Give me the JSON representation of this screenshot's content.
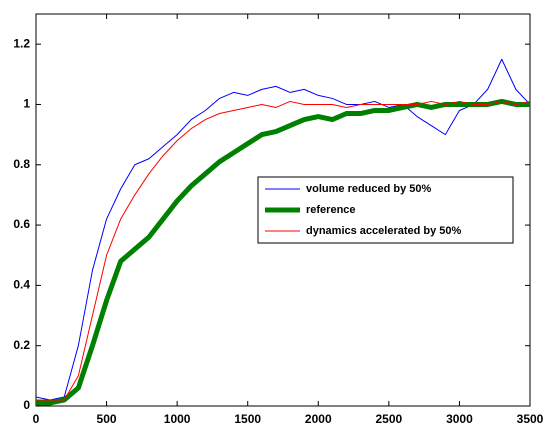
{
  "chart_data": {
    "type": "line",
    "x": [
      0,
      100,
      200,
      300,
      400,
      500,
      600,
      700,
      800,
      900,
      1000,
      1100,
      1200,
      1300,
      1400,
      1500,
      1600,
      1700,
      1800,
      1900,
      2000,
      2100,
      2200,
      2300,
      2400,
      2500,
      2600,
      2700,
      2800,
      2900,
      3000,
      3100,
      3200,
      3300,
      3400,
      3500
    ],
    "series": [
      {
        "name": "volume reduced by 50%",
        "color": "#0000ff",
        "values": [
          0.03,
          0.02,
          0.03,
          0.2,
          0.45,
          0.62,
          0.72,
          0.8,
          0.82,
          0.86,
          0.9,
          0.95,
          0.98,
          1.02,
          1.04,
          1.03,
          1.05,
          1.06,
          1.04,
          1.05,
          1.03,
          1.02,
          1.0,
          1.0,
          1.01,
          0.99,
          1.0,
          0.96,
          0.93,
          0.9,
          0.98,
          1.0,
          1.05,
          1.15,
          1.05,
          1.0
        ]
      },
      {
        "name": "reference",
        "color": "#008000",
        "values": [
          0.01,
          0.01,
          0.02,
          0.06,
          0.2,
          0.35,
          0.48,
          0.52,
          0.56,
          0.62,
          0.68,
          0.73,
          0.77,
          0.81,
          0.84,
          0.87,
          0.9,
          0.91,
          0.93,
          0.95,
          0.96,
          0.95,
          0.97,
          0.97,
          0.98,
          0.98,
          0.99,
          1.0,
          0.99,
          1.0,
          1.0,
          1.0,
          1.0,
          1.01,
          1.0,
          1.0
        ]
      },
      {
        "name": "dynamics accelerated by 50%",
        "color": "#ff0000",
        "values": [
          0.02,
          0.02,
          0.02,
          0.1,
          0.3,
          0.5,
          0.62,
          0.7,
          0.77,
          0.83,
          0.88,
          0.92,
          0.95,
          0.97,
          0.98,
          0.99,
          1.0,
          0.99,
          1.01,
          1.0,
          1.0,
          1.0,
          0.99,
          1.0,
          1.0,
          1.0,
          1.0,
          1.0,
          1.01,
          1.0,
          1.01,
          1.0,
          1.0,
          1.01,
          1.0,
          1.01
        ]
      }
    ],
    "xlim": [
      0,
      3500
    ],
    "xticks": [
      0,
      500,
      1000,
      1500,
      2000,
      2500,
      3000,
      3500
    ],
    "ylim": [
      0,
      1.3
    ],
    "yticks": [
      0,
      0.2,
      0.4,
      0.6,
      0.8,
      1,
      1.2
    ],
    "grid": false,
    "legend": "center right"
  }
}
